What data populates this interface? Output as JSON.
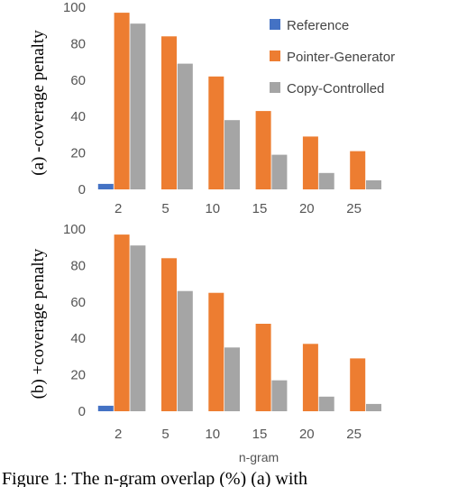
{
  "chart_data": [
    {
      "type": "bar",
      "ylabel": "(a) -coverage penalty",
      "xlabel": "",
      "categories": [
        "2",
        "5",
        "10",
        "15",
        "20",
        "25"
      ],
      "ylim": [
        0,
        100
      ],
      "yticks": [
        "0",
        "20",
        "40",
        "60",
        "80",
        "100"
      ],
      "legend": "top-right",
      "series": [
        {
          "name": "Reference",
          "color": "#4472c4",
          "values": [
            3,
            0,
            0,
            0,
            0,
            0
          ]
        },
        {
          "name": "Pointer-Generator",
          "color": "#ed7d31",
          "values": [
            97,
            84,
            62,
            43,
            29,
            21
          ]
        },
        {
          "name": "Copy-Controlled",
          "color": "#a5a5a5",
          "values": [
            91,
            69,
            38,
            19,
            9,
            5
          ]
        }
      ]
    },
    {
      "type": "bar",
      "ylabel": "(b) +coverage penalty",
      "xlabel": "n-gram",
      "categories": [
        "2",
        "5",
        "10",
        "15",
        "20",
        "25"
      ],
      "ylim": [
        0,
        100
      ],
      "yticks": [
        "0",
        "20",
        "40",
        "60",
        "80",
        "100"
      ],
      "series": [
        {
          "name": "Reference",
          "color": "#4472c4",
          "values": [
            3,
            0,
            0,
            0,
            0,
            0
          ]
        },
        {
          "name": "Pointer-Generator",
          "color": "#ed7d31",
          "values": [
            97,
            84,
            65,
            48,
            37,
            29
          ]
        },
        {
          "name": "Copy-Controlled",
          "color": "#a5a5a5",
          "values": [
            91,
            66,
            35,
            17,
            8,
            4
          ]
        }
      ]
    }
  ],
  "caption": "Figure 1:    The n-gram overlap (%) (a) with"
}
